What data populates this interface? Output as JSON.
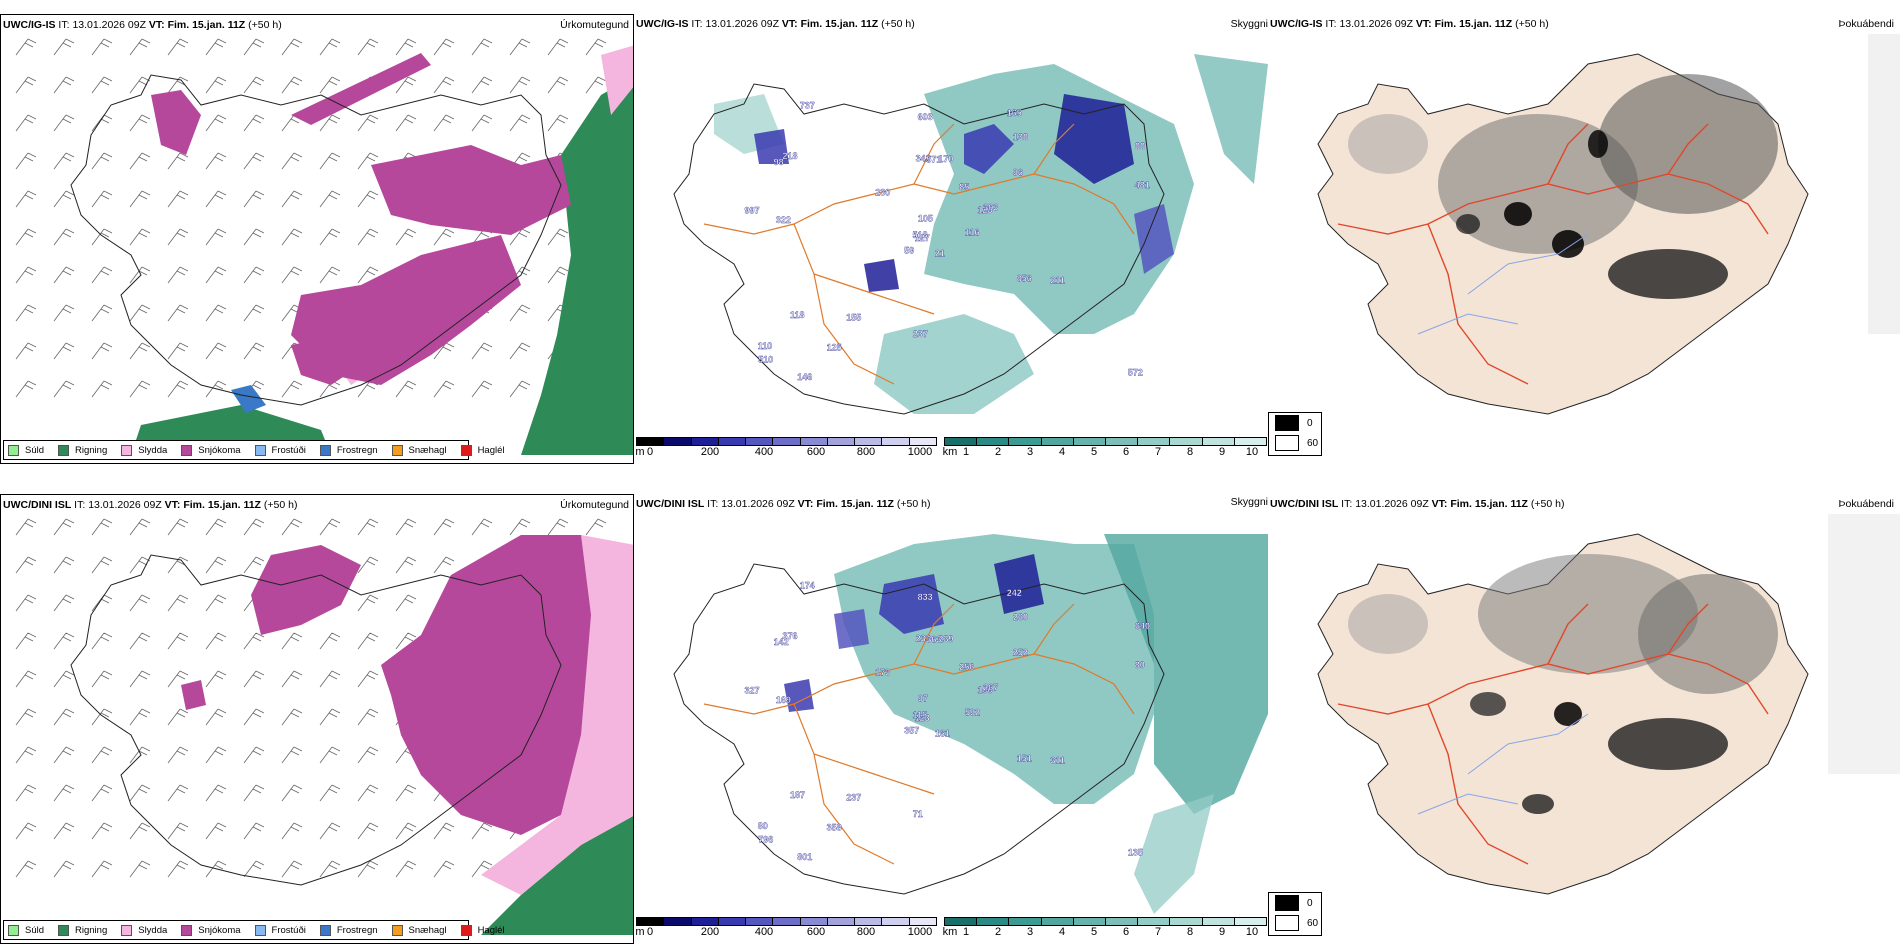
{
  "rows": [
    {
      "model": "UWC/IG-IS",
      "it_label": "IT:",
      "it_value": "13.01.2026 09Z",
      "vt_label": "VT:",
      "vt_value": "Fim. 15.jan. 11Z",
      "lead": "(+50 h)"
    },
    {
      "model": "UWC/DINI ISL",
      "it_label": "IT:",
      "it_value": "13.01.2026 09Z",
      "vt_label": "VT:",
      "vt_value": "Fim. 15.jan. 11Z",
      "lead": "(+50 h)"
    }
  ],
  "fields": {
    "precip_type": "Úrkomutegund",
    "cloud": "Skyggni",
    "fog": "Þokuábendi"
  },
  "precip_legend": [
    {
      "label": "Súld",
      "color": "#90ee90"
    },
    {
      "label": "Rigning",
      "color": "#2e8b57"
    },
    {
      "label": "Slydda",
      "color": "#f4b6de"
    },
    {
      "label": "Snjókoma",
      "color": "#b5489b"
    },
    {
      "label": "Frostúði",
      "color": "#87b9ee"
    },
    {
      "label": "Frostregn",
      "color": "#3a78c8"
    },
    {
      "label": "Snæhagl",
      "color": "#f39c1f"
    },
    {
      "label": "Haglél",
      "color": "#e01a1a"
    }
  ],
  "ceiling_bar": {
    "unit": "m",
    "ticks": [
      "0",
      "200",
      "400",
      "600",
      "800",
      "1000"
    ],
    "colors": [
      "#000000",
      "#0a0a6b",
      "#1e1e96",
      "#3a3ab0",
      "#5656c0",
      "#6e6ec8",
      "#8a8ad4",
      "#a2a2dc",
      "#babae6",
      "#d0d0ee",
      "#e6e6f6"
    ]
  },
  "visibility_bar": {
    "unit": "km",
    "ticks": [
      "1",
      "2",
      "3",
      "4",
      "5",
      "6",
      "7",
      "8",
      "9",
      "10"
    ],
    "colors": [
      "#1b6f6a",
      "#2b8a83",
      "#3d9a92",
      "#51a69f",
      "#67b3ac",
      "#7dbfb8",
      "#93cbc5",
      "#a9d7d2",
      "#c0e3df",
      "#d7efec"
    ]
  },
  "fog_legend": [
    {
      "label": "0",
      "color": "#000000"
    },
    {
      "label": "60",
      "color": "#ffffff"
    }
  ],
  "cloud_labels_top": [
    "21",
    "98",
    "127",
    "110",
    "123",
    "155",
    "165",
    "170",
    "138",
    "116",
    "737",
    "572",
    "322",
    "88",
    "59",
    "96",
    "146",
    "342",
    "85",
    "118",
    "230",
    "510",
    "125",
    "571",
    "303",
    "211",
    "218",
    "603",
    "997",
    "856",
    "481",
    "518",
    "237",
    "105"
  ],
  "cloud_labels_bottom": [
    "161",
    "142",
    "123",
    "80",
    "106",
    "237",
    "242",
    "239",
    "260",
    "592",
    "174",
    "135",
    "169",
    "640",
    "357",
    "252",
    "801",
    "233",
    "256",
    "187",
    "173",
    "796",
    "358",
    "363",
    "267",
    "311",
    "376",
    "833",
    "327",
    "151",
    "80",
    "115",
    "71",
    "97"
  ]
}
